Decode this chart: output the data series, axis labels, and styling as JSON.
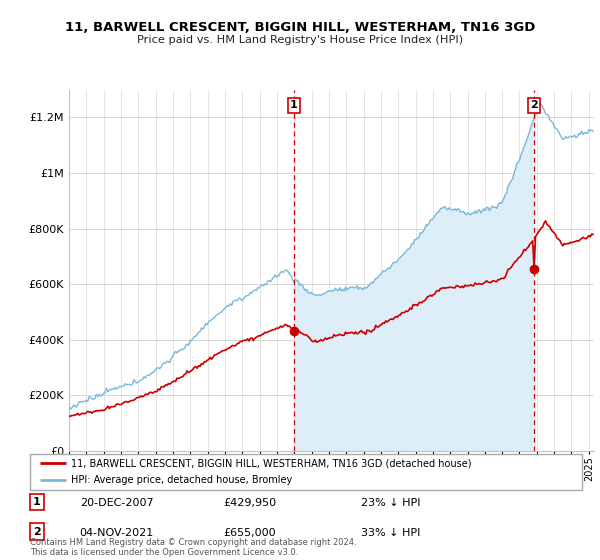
{
  "title": "11, BARWELL CRESCENT, BIGGIN HILL, WESTERHAM, TN16 3GD",
  "subtitle": "Price paid vs. HM Land Registry's House Price Index (HPI)",
  "legend_line1": "11, BARWELL CRESCENT, BIGGIN HILL, WESTERHAM, TN16 3GD (detached house)",
  "legend_line2": "HPI: Average price, detached house, Bromley",
  "annotation1_date": "20-DEC-2007",
  "annotation1_price": "£429,950",
  "annotation1_hpi": "23% ↓ HPI",
  "annotation2_date": "04-NOV-2021",
  "annotation2_price": "£655,000",
  "annotation2_hpi": "33% ↓ HPI",
  "footer": "Contains HM Land Registry data © Crown copyright and database right 2024.\nThis data is licensed under the Open Government Licence v3.0.",
  "hpi_color": "#7ab8d9",
  "hpi_fill_color": "#ddeef8",
  "price_color": "#cc0000",
  "vline_color": "#cc0000",
  "ylim": [
    0,
    1300000
  ],
  "yticks": [
    0,
    200000,
    400000,
    600000,
    800000,
    1000000,
    1200000
  ],
  "ytick_labels": [
    "£0",
    "£200K",
    "£400K",
    "£600K",
    "£800K",
    "£1M",
    "£1.2M"
  ],
  "sale1_x": 2007.97,
  "sale1_y": 429950,
  "sale2_x": 2021.84,
  "sale2_y": 655000,
  "xlim_start": 1995,
  "xlim_end": 2025.3
}
